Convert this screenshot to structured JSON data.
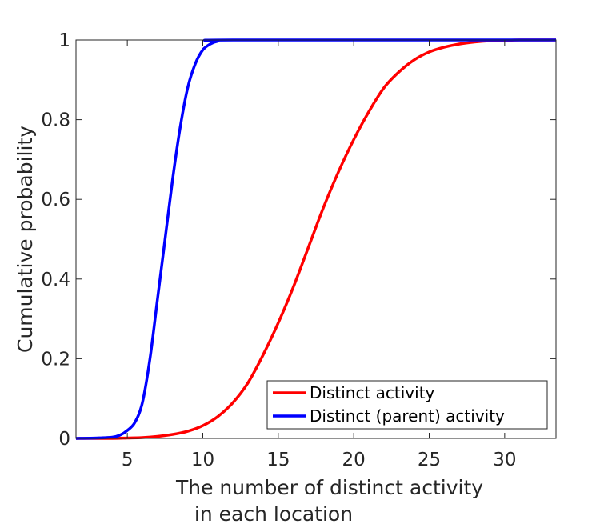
{
  "chart_data": {
    "type": "line",
    "title": "",
    "xlabel_lines": [
      "The number of distinct activity",
      "in each location"
    ],
    "ylabel": "Cumulative probability",
    "xlim": [
      1.6,
      33.4
    ],
    "ylim": [
      0,
      1
    ],
    "xticks": [
      5,
      10,
      15,
      20,
      25,
      30
    ],
    "yticks": [
      0,
      0.2,
      0.4,
      0.6,
      0.8,
      1
    ],
    "ytick_labels": [
      "0",
      "0.2",
      "0.4",
      "0.6",
      "0.8",
      "1"
    ],
    "grid": false,
    "legend_position": "bottom-right",
    "series": [
      {
        "name": "Distinct activity",
        "color": "#ff0000",
        "points": [
          [
            1.6,
            0.0
          ],
          [
            4,
            0.0
          ],
          [
            5,
            0.001
          ],
          [
            6,
            0.002
          ],
          [
            7,
            0.005
          ],
          [
            8,
            0.01
          ],
          [
            9,
            0.018
          ],
          [
            10,
            0.032
          ],
          [
            11,
            0.055
          ],
          [
            12,
            0.09
          ],
          [
            13,
            0.14
          ],
          [
            14,
            0.21
          ],
          [
            15,
            0.29
          ],
          [
            16,
            0.38
          ],
          [
            17,
            0.48
          ],
          [
            18,
            0.58
          ],
          [
            19,
            0.67
          ],
          [
            20,
            0.75
          ],
          [
            21,
            0.82
          ],
          [
            22,
            0.88
          ],
          [
            23,
            0.92
          ],
          [
            24,
            0.95
          ],
          [
            25,
            0.97
          ],
          [
            26,
            0.982
          ],
          [
            27,
            0.99
          ],
          [
            28,
            0.995
          ],
          [
            29,
            0.998
          ],
          [
            30,
            0.999
          ],
          [
            31,
            1.0
          ],
          [
            33.4,
            1.0
          ]
        ]
      },
      {
        "name": "Distinct (parent) activity",
        "color": "#0000ff",
        "points": [
          [
            1.6,
            0.0
          ],
          [
            3,
            0.001
          ],
          [
            4,
            0.003
          ],
          [
            4.5,
            0.008
          ],
          [
            5,
            0.02
          ],
          [
            5.5,
            0.04
          ],
          [
            6,
            0.09
          ],
          [
            6.5,
            0.2
          ],
          [
            7,
            0.35
          ],
          [
            7.5,
            0.5
          ],
          [
            8,
            0.65
          ],
          [
            8.5,
            0.78
          ],
          [
            9,
            0.88
          ],
          [
            9.5,
            0.94
          ],
          [
            10,
            0.975
          ],
          [
            10.5,
            0.99
          ],
          [
            11,
            0.997
          ],
          [
            12,
            1.0
          ],
          [
            33.4,
            1.0
          ]
        ]
      }
    ]
  }
}
